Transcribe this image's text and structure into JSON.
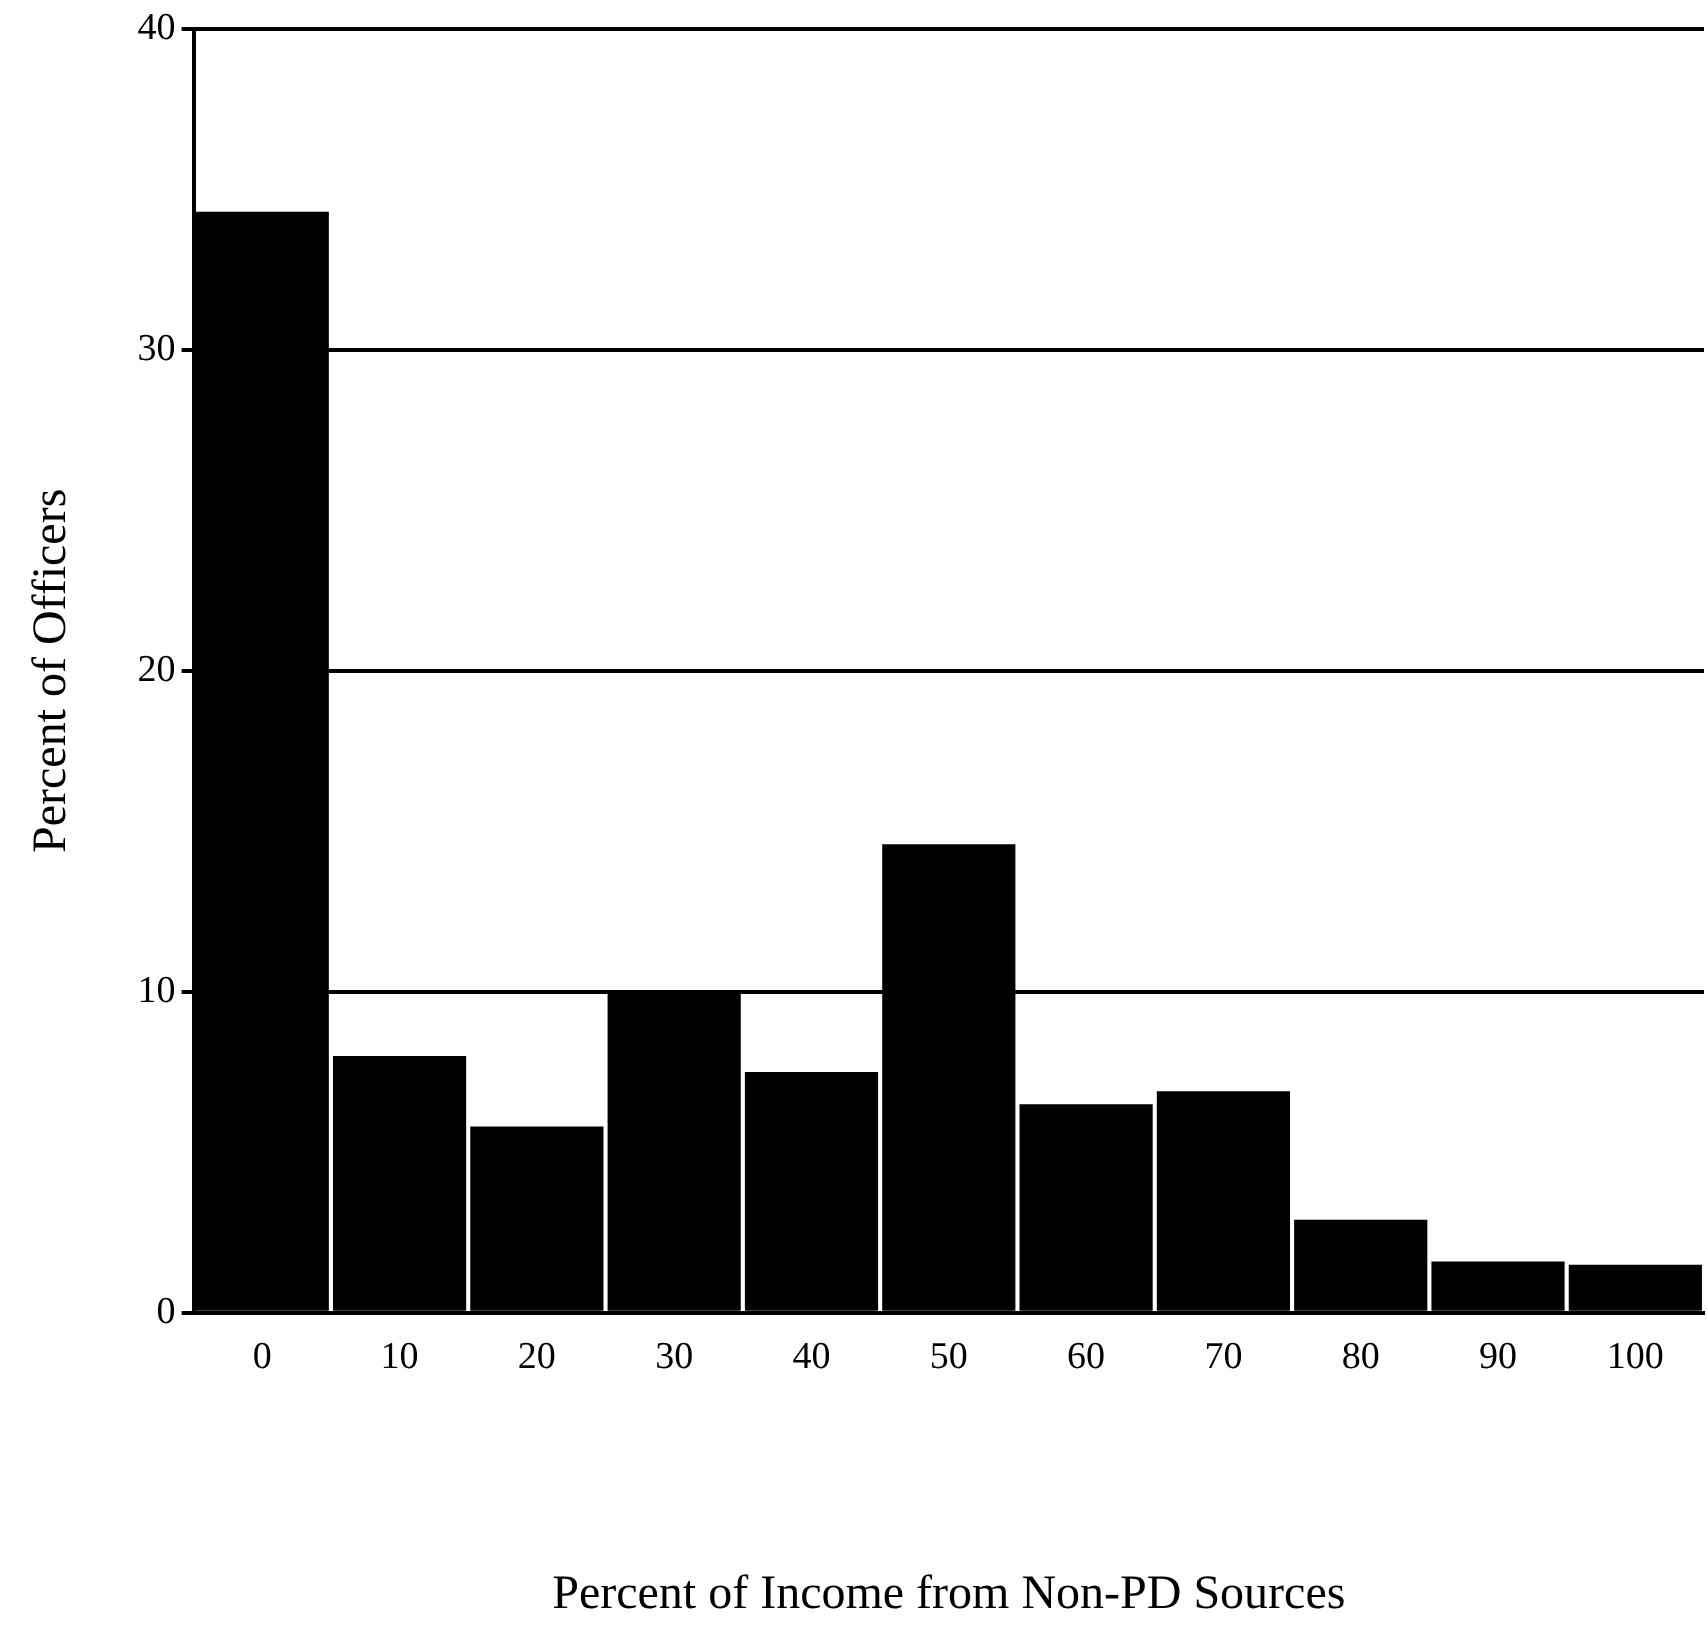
{
  "chart_data": {
    "type": "bar",
    "xlabel": "Percent of Income from Non-PD Sources",
    "ylabel": "Percent of Officers",
    "categories": [
      "0",
      "10",
      "20",
      "30",
      "40",
      "50",
      "60",
      "70",
      "80",
      "90",
      "100"
    ],
    "values": [
      34.3,
      8.0,
      5.8,
      10.0,
      7.5,
      14.6,
      6.5,
      6.9,
      2.9,
      1.6,
      1.5
    ],
    "color": "#000000",
    "ylim": [
      0,
      40
    ],
    "yticks": [
      0,
      10,
      20,
      30,
      40
    ],
    "grid": "y",
    "legend": false
  }
}
